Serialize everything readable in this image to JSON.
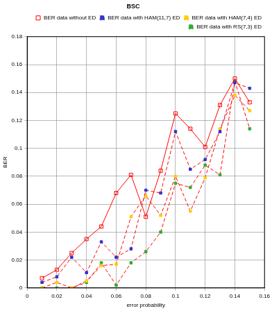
{
  "chart_data": {
    "type": "line",
    "title": "BSC",
    "x_label": "error probability",
    "y_label": "BER",
    "x": [
      0.01,
      0.02,
      0.03,
      0.04,
      0.05,
      0.06,
      0.07,
      0.08,
      0.09,
      0.1,
      0.11,
      0.12,
      0.13,
      0.14,
      0.15
    ],
    "series": [
      {
        "name": "BER data without ED",
        "color": "#ff0000",
        "marker": "square",
        "line_style": "solid",
        "values": [
          0.007,
          0.013,
          0.025,
          0.035,
          0.044,
          0.068,
          0.081,
          0.051,
          0.084,
          0.125,
          0.114,
          0.101,
          0.131,
          0.15,
          0.133
        ]
      },
      {
        "name": "BER data with HAM(11,7) ED",
        "color": "#3333cc",
        "marker": "square",
        "line_style": "dashed",
        "values": [
          0.004,
          0.008,
          0.022,
          0.011,
          0.033,
          0.022,
          0.028,
          0.07,
          0.068,
          0.112,
          0.085,
          0.092,
          0.112,
          0.147,
          0.143
        ]
      },
      {
        "name": "BER data with HAM(7,4) ED",
        "color": "#ffcc00",
        "marker": "square",
        "line_style": "dashed",
        "values": [
          0.0,
          0.004,
          0.0,
          0.005,
          0.016,
          0.017,
          0.051,
          0.066,
          0.052,
          0.08,
          0.055,
          0.079,
          0.114,
          0.138,
          0.127
        ]
      },
      {
        "name": "BER data with RS(7,3) ED",
        "color": "#33aa33",
        "marker": "square",
        "line_style": "dashed",
        "values": [
          0.0,
          0.0,
          0.0,
          0.004,
          0.018,
          0.002,
          0.018,
          0.026,
          0.04,
          0.075,
          0.072,
          0.088,
          0.081,
          0.148,
          0.114
        ]
      }
    ],
    "xlim": [
      0,
      0.16
    ],
    "xticks": [
      0,
      0.02,
      0.04,
      0.06,
      0.08,
      0.1,
      0.12,
      0.14,
      0.16
    ],
    "ylim": [
      0,
      0.18
    ],
    "yticks": [
      0,
      0.02,
      0.04,
      0.06,
      0.08,
      0.1,
      0.12,
      0.14,
      0.16,
      0.18
    ],
    "grid": true,
    "legend": "top-right"
  }
}
